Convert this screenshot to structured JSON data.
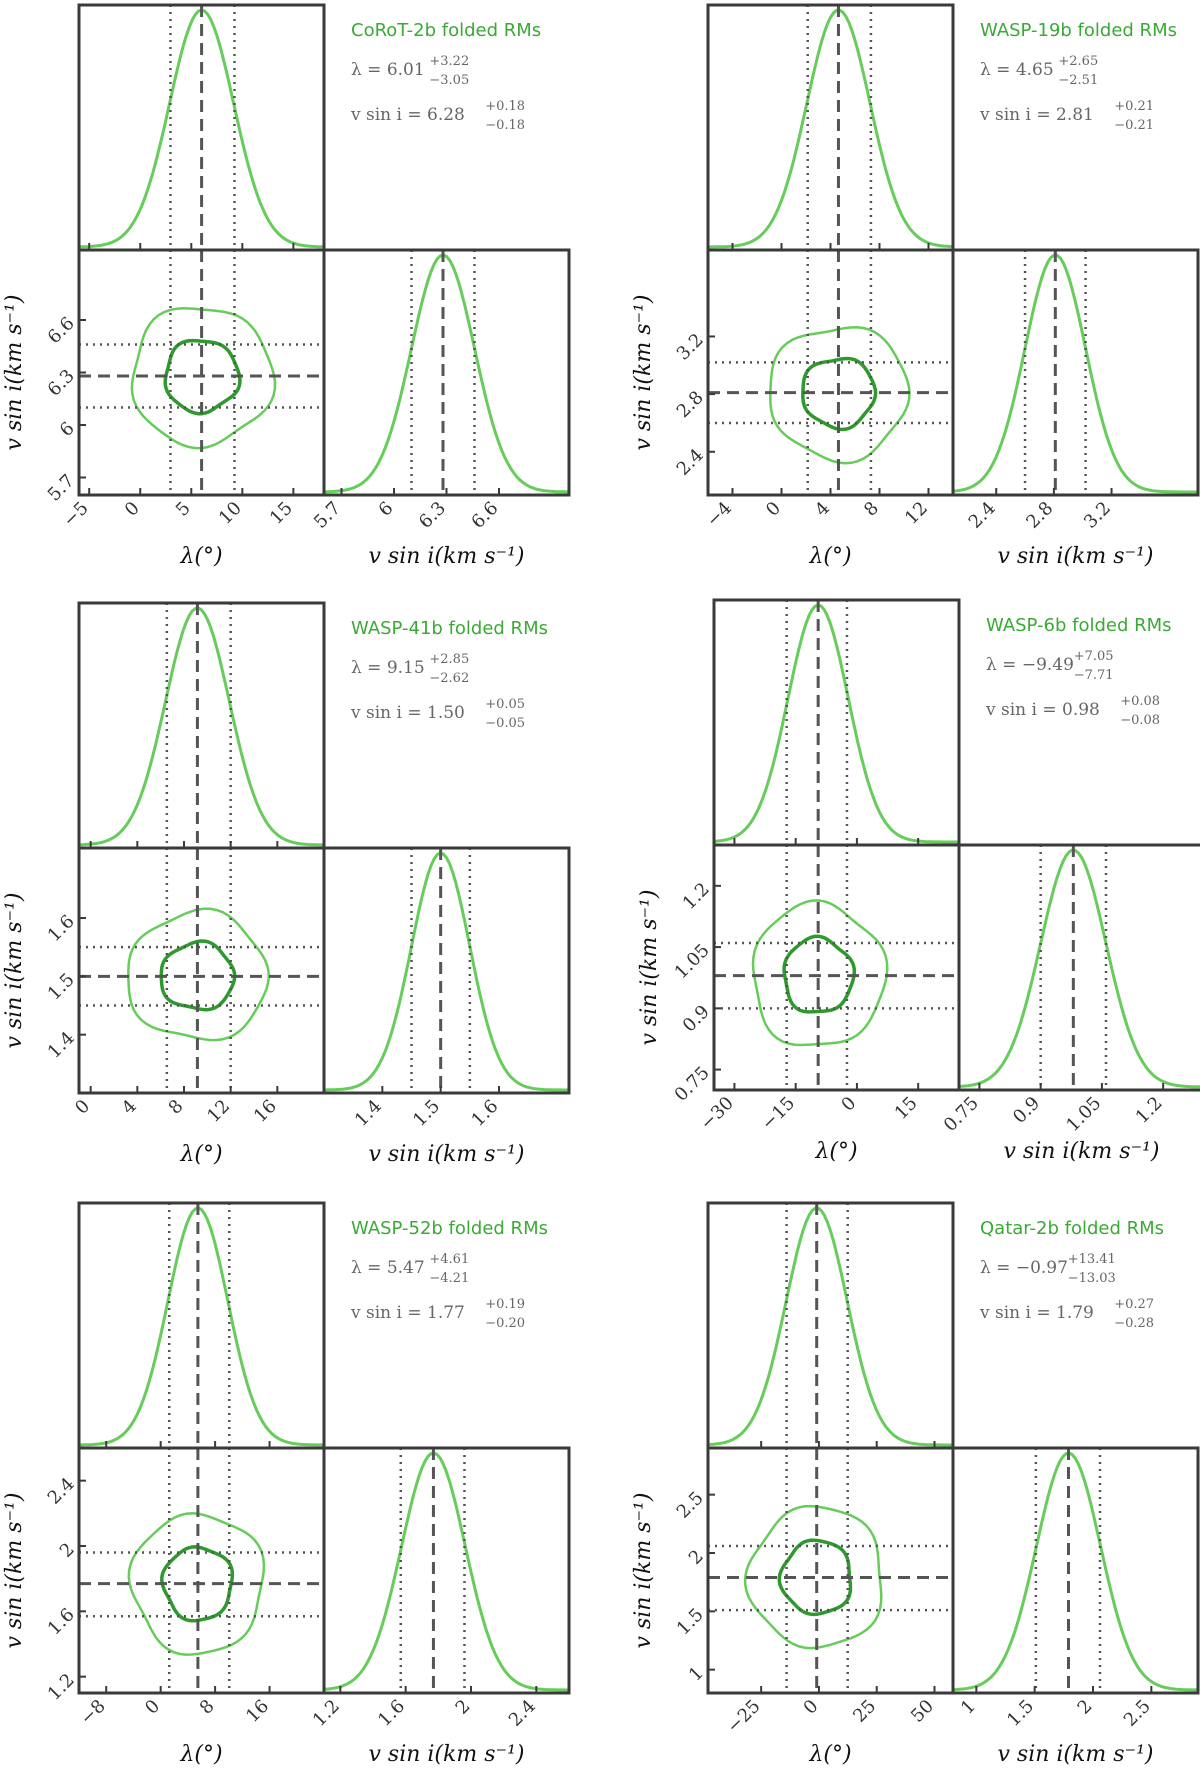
{
  "figure": {
    "background": "#ffffff",
    "frame_color": "#3a3a3a"
  },
  "colors": {
    "light": "#66cc5a",
    "dark": "#2e9a2e",
    "line": "#555555"
  },
  "chart_data": [
    {
      "type": "corner",
      "title": "CoRoT-2b folded RMs",
      "lambda": {
        "label": "λ(°)",
        "median": 6.01,
        "plus": 3.22,
        "minus": 3.05,
        "range": [
          -6,
          18
        ],
        "ticks": [
          -5,
          0,
          5,
          10,
          15
        ]
      },
      "vsini": {
        "label": "v sin i(km s⁻¹)",
        "median": 6.28,
        "plus": 0.18,
        "minus": 0.18,
        "range": [
          5.6,
          7.0
        ],
        "ticks": [
          5.7,
          6.0,
          6.3,
          6.6
        ]
      },
      "stat_lambda": "λ = 6.01",
      "stat_lambda_sup": "+3.22",
      "stat_lambda_sub": "−3.05",
      "stat_vsini": "v sin i = 6.28",
      "stat_vsini_sup": "+0.18",
      "stat_vsini_sub": "−0.18"
    },
    {
      "type": "corner",
      "title": "WASP-19b folded RMs",
      "lambda": {
        "label": "λ(°)",
        "median": 4.65,
        "plus": 2.65,
        "minus": 2.51,
        "range": [
          -6,
          14
        ],
        "ticks": [
          -4,
          0,
          4,
          8,
          12
        ]
      },
      "vsini": {
        "label": "v sin i(km s⁻¹)",
        "median": 2.81,
        "plus": 0.21,
        "minus": 0.21,
        "range": [
          2.1,
          3.8
        ],
        "ticks": [
          2.4,
          2.8,
          3.2
        ]
      },
      "stat_lambda": "λ = 4.65",
      "stat_lambda_sup": "+2.65",
      "stat_lambda_sub": "−2.51",
      "stat_vsini": "v sin i = 2.81",
      "stat_vsini_sup": "+0.21",
      "stat_vsini_sub": "−0.21"
    },
    {
      "type": "corner",
      "title": "WASP-41b folded RMs",
      "lambda": {
        "label": "λ(°)",
        "median": 9.15,
        "plus": 2.85,
        "minus": 2.62,
        "range": [
          -1,
          20
        ],
        "ticks": [
          0,
          4,
          8,
          12,
          16
        ]
      },
      "vsini": {
        "label": "v sin i(km s⁻¹)",
        "median": 1.5,
        "plus": 0.05,
        "minus": 0.05,
        "range": [
          1.3,
          1.72
        ],
        "ticks": [
          1.4,
          1.5,
          1.6
        ]
      },
      "stat_lambda": "λ = 9.15",
      "stat_lambda_sup": "+2.85",
      "stat_lambda_sub": "−2.62",
      "stat_vsini": "v sin i = 1.50",
      "stat_vsini_sup": "+0.05",
      "stat_vsini_sub": "−0.05"
    },
    {
      "type": "corner",
      "title": "WASP-6b folded RMs",
      "lambda": {
        "label": "λ(°)",
        "median": -9.49,
        "plus": 7.05,
        "minus": 7.71,
        "range": [
          -35,
          25
        ],
        "ticks": [
          -30,
          -15,
          0,
          15
        ]
      },
      "vsini": {
        "label": "v sin i(km s⁻¹)",
        "median": 0.98,
        "plus": 0.08,
        "minus": 0.08,
        "range": [
          0.7,
          1.3
        ],
        "ticks": [
          0.75,
          0.9,
          1.05,
          1.2
        ]
      },
      "stat_lambda": "λ = −9.49",
      "stat_lambda_sup": "+7.05",
      "stat_lambda_sub": "−7.71",
      "stat_vsini": "v sin i = 0.98",
      "stat_vsini_sup": "+0.08",
      "stat_vsini_sub": "−0.08"
    },
    {
      "type": "corner",
      "title": "WASP-52b folded RMs",
      "lambda": {
        "label": "λ(°)",
        "median": 5.47,
        "plus": 4.61,
        "minus": 4.21,
        "range": [
          -12,
          24
        ],
        "ticks": [
          -8,
          0,
          8,
          16
        ]
      },
      "vsini": {
        "label": "v sin i(km s⁻¹)",
        "median": 1.77,
        "plus": 0.19,
        "minus": 0.2,
        "range": [
          1.1,
          2.6
        ],
        "ticks": [
          1.2,
          1.6,
          2.0,
          2.4
        ]
      },
      "stat_lambda": "λ = 5.47",
      "stat_lambda_sup": "+4.61",
      "stat_lambda_sub": "−4.21",
      "stat_vsini": "v sin i = 1.77",
      "stat_vsini_sup": "+0.19",
      "stat_vsini_sub": "−0.20"
    },
    {
      "type": "corner",
      "title": "Qatar-2b folded RMs",
      "lambda": {
        "label": "λ(°)",
        "median": -0.97,
        "plus": 13.41,
        "minus": 13.03,
        "range": [
          -48,
          58
        ],
        "ticks": [
          -25,
          0,
          25,
          50
        ]
      },
      "vsini": {
        "label": "v sin i(km s⁻¹)",
        "median": 1.79,
        "plus": 0.27,
        "minus": 0.28,
        "range": [
          0.8,
          2.9
        ],
        "ticks": [
          1.0,
          1.5,
          2.0,
          2.5
        ]
      },
      "stat_lambda": "λ = −0.97",
      "stat_lambda_sup": "+13.41",
      "stat_lambda_sub": "−13.03",
      "stat_vsini": "v sin i = 1.79",
      "stat_vsini_sup": "+0.27",
      "stat_vsini_sub": "−0.28"
    }
  ]
}
